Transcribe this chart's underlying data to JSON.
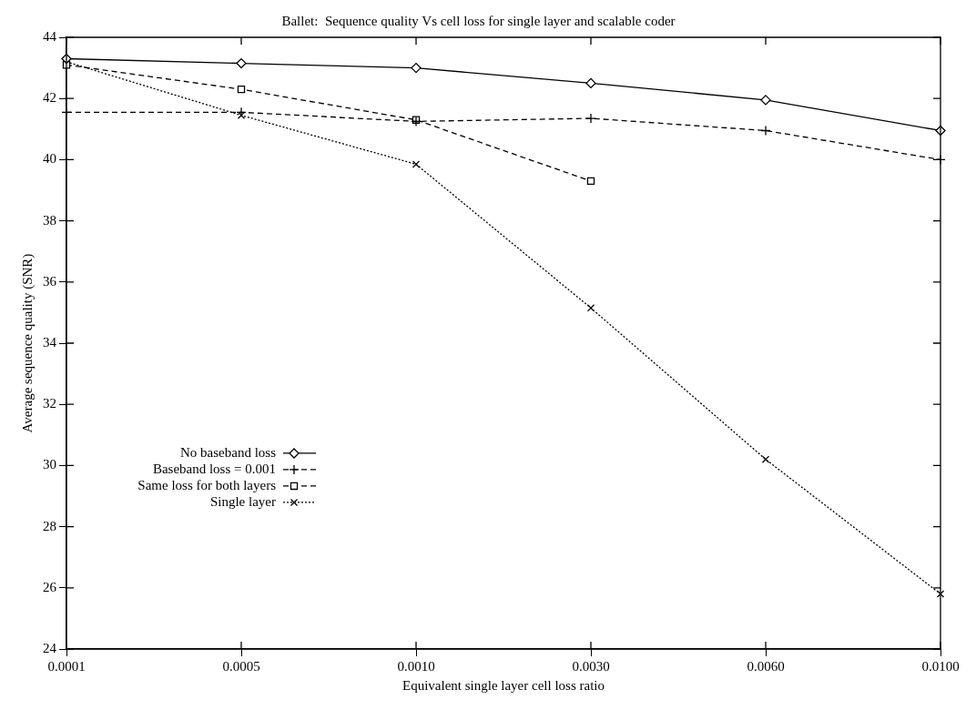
{
  "chart_data": {
    "type": "line",
    "title": "Ballet:  Sequence quality Vs cell loss for single layer and scalable coder",
    "xlabel": "Equivalent single layer cell loss ratio",
    "ylabel": "Average sequence quality (SNR)",
    "categories": [
      "0.0001",
      "0.0005",
      "0.0010",
      "0.0030",
      "0.0060",
      "0.0100"
    ],
    "series": [
      {
        "name": "No baseband loss",
        "color": "#000000",
        "marker": "diamond",
        "line_style": "solid",
        "values": [
          43.3,
          43.15,
          43.0,
          42.5,
          41.95,
          40.95
        ]
      },
      {
        "name": "Baseband loss = 0.001",
        "color": "#000000",
        "marker": "cross",
        "line_style": "dashed",
        "values": [
          41.55,
          41.55,
          41.25,
          41.35,
          40.95,
          40.0
        ]
      },
      {
        "name": "Same loss for both layers",
        "color": "#000000",
        "marker": "square",
        "line_style": "dashed",
        "values": [
          43.1,
          42.3,
          41.3,
          39.3,
          null,
          null
        ]
      },
      {
        "name": "Single layer",
        "color": "#000000",
        "marker": "x",
        "line_style": "dotted",
        "values": [
          43.2,
          41.45,
          39.85,
          35.15,
          30.2,
          25.8
        ]
      }
    ],
    "ylim": [
      24,
      44
    ],
    "yticks": [
      24,
      26,
      28,
      30,
      32,
      34,
      36,
      38,
      40,
      42,
      44
    ],
    "grid": false,
    "legend": "left"
  }
}
